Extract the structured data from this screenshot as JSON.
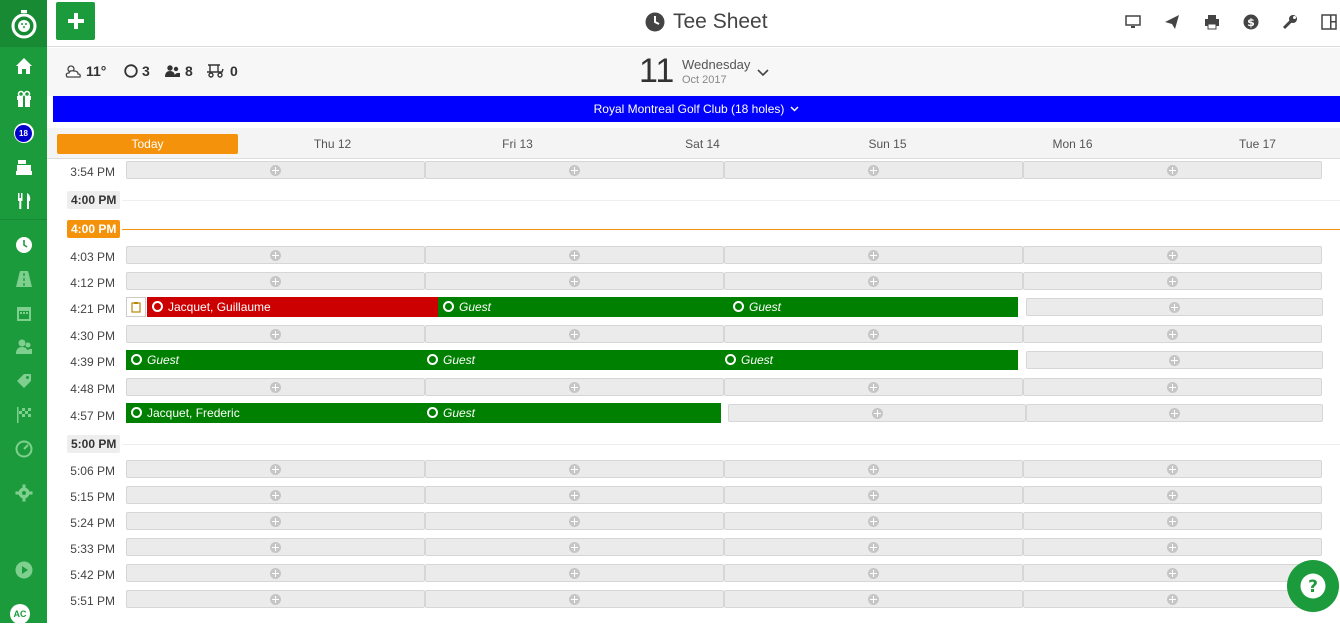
{
  "app": {
    "title": "Tee Sheet",
    "avatar": "AC"
  },
  "sidebar": {
    "badge": "18"
  },
  "infobar": {
    "temperature": "11°",
    "rounds": "3",
    "players": "8",
    "carts": "0",
    "day_number": "11",
    "day_name": "Wednesday",
    "month_year": "Oct 2017"
  },
  "course": {
    "label": "Royal Montreal Golf Club (18 holes)"
  },
  "days": [
    "Today",
    "Thu 12",
    "Fri 13",
    "Sat 14",
    "Sun 15",
    "Mon 16",
    "Tue 17"
  ],
  "hours": {
    "h1": "4:00 PM",
    "now": "4:00 PM",
    "h2": "5:00 PM"
  },
  "times": [
    "3:54 PM",
    "4:03 PM",
    "4:12 PM",
    "4:21 PM",
    "4:30 PM",
    "4:39 PM",
    "4:48 PM",
    "4:57 PM",
    "5:06 PM",
    "5:15 PM",
    "5:24 PM",
    "5:33 PM",
    "5:42 PM",
    "5:51 PM"
  ],
  "bookings": {
    "b1_name": "Jacquet, Guillaume",
    "b1_g1": "Guest",
    "b1_g2": "Guest",
    "b2_g1": "Guest",
    "b2_g2": "Guest",
    "b2_g3": "Guest",
    "b3_name": "Jacquet, Frederic",
    "b3_g1": "Guest"
  },
  "colors": {
    "brand": "#1c9b3c",
    "course": "#0000ff",
    "today": "#f5920c",
    "booked": "#008000",
    "booked_owner": "#cc0000"
  }
}
